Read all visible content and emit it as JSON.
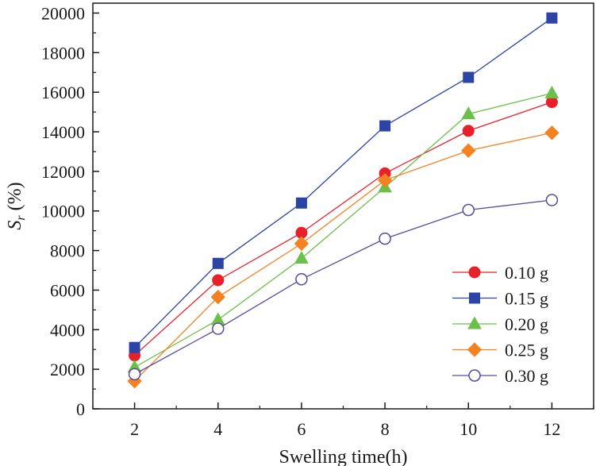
{
  "chart_data": {
    "type": "line",
    "xlabel": "Swelling time(h)",
    "ylabel": {
      "main": "S",
      "sub": "r",
      "suffix": " (%)"
    },
    "x": [
      2,
      4,
      6,
      8,
      10,
      12
    ],
    "xlim": [
      1,
      13
    ],
    "ylim": [
      0,
      20500
    ],
    "xticks": [
      "2",
      "4",
      "6",
      "8",
      "10",
      "12"
    ],
    "yticks": [
      "0",
      "2000",
      "4000",
      "6000",
      "8000",
      "10000",
      "12000",
      "14000",
      "16000",
      "18000",
      "20000"
    ],
    "grid": false,
    "legend_position": "bottom-right",
    "series": [
      {
        "name": "0.10 g",
        "color": "#e8202a",
        "marker": "circle-filled",
        "values": [
          2700,
          6500,
          8900,
          11900,
          14050,
          15500
        ]
      },
      {
        "name": "0.15 g",
        "color": "#2b44a6",
        "marker": "square-filled",
        "values": [
          3100,
          7350,
          10400,
          14300,
          16750,
          19750
        ]
      },
      {
        "name": "0.20 g",
        "color": "#6cc04a",
        "marker": "triangle-filled",
        "values": [
          2100,
          4500,
          7600,
          11200,
          14900,
          15950
        ]
      },
      {
        "name": "0.25 g",
        "color": "#f58220",
        "marker": "diamond-filled",
        "values": [
          1400,
          5650,
          8350,
          11550,
          13050,
          13950
        ]
      },
      {
        "name": "0.30 g",
        "color": "#5a4a9a",
        "marker": "circle-open",
        "values": [
          1750,
          4050,
          6550,
          8600,
          10050,
          10550
        ]
      }
    ]
  }
}
